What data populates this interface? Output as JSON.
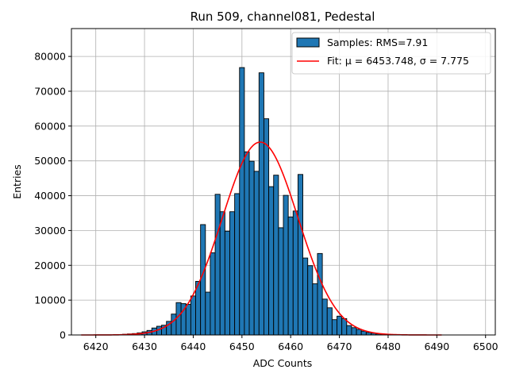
{
  "chart_data": {
    "type": "bar",
    "title": "Run 509, channel081, Pedestal",
    "xlabel": "ADC Counts",
    "ylabel": "Entries",
    "xlim": [
      6415,
      6502
    ],
    "ylim": [
      0,
      88000
    ],
    "xticks": [
      6420,
      6430,
      6440,
      6450,
      6460,
      6470,
      6480,
      6490,
      6500
    ],
    "yticks": [
      0,
      10000,
      20000,
      30000,
      40000,
      50000,
      60000,
      70000,
      80000
    ],
    "grid": true,
    "legend_position": "top-right",
    "colors": {
      "bars": "#1f77b4",
      "bar_edge": "#000000",
      "fit": "#ff0000",
      "grid": "#b0b0b0"
    },
    "histogram": {
      "series_name": "Samples: RMS=7.91",
      "bin_width": 1,
      "bins": [
        {
          "x": 6425,
          "y": 100
        },
        {
          "x": 6426,
          "y": 200
        },
        {
          "x": 6427,
          "y": 300
        },
        {
          "x": 6428,
          "y": 400
        },
        {
          "x": 6429,
          "y": 600
        },
        {
          "x": 6430,
          "y": 900
        },
        {
          "x": 6431,
          "y": 1300
        },
        {
          "x": 6432,
          "y": 2000
        },
        {
          "x": 6433,
          "y": 2500
        },
        {
          "x": 6434,
          "y": 2800
        },
        {
          "x": 6435,
          "y": 3900
        },
        {
          "x": 6436,
          "y": 6000
        },
        {
          "x": 6437,
          "y": 9300
        },
        {
          "x": 6438,
          "y": 9000
        },
        {
          "x": 6439,
          "y": 8800
        },
        {
          "x": 6440,
          "y": 11200
        },
        {
          "x": 6441,
          "y": 15400
        },
        {
          "x": 6442,
          "y": 31700
        },
        {
          "x": 6443,
          "y": 12300
        },
        {
          "x": 6444,
          "y": 23600
        },
        {
          "x": 6445,
          "y": 40400
        },
        {
          "x": 6446,
          "y": 35400
        },
        {
          "x": 6447,
          "y": 29800
        },
        {
          "x": 6448,
          "y": 35400
        },
        {
          "x": 6449,
          "y": 40600
        },
        {
          "x": 6450,
          "y": 76800
        },
        {
          "x": 6451,
          "y": 52600
        },
        {
          "x": 6452,
          "y": 49900
        },
        {
          "x": 6453,
          "y": 47000
        },
        {
          "x": 6454,
          "y": 75300
        },
        {
          "x": 6455,
          "y": 62100
        },
        {
          "x": 6456,
          "y": 42600
        },
        {
          "x": 6457,
          "y": 45900
        },
        {
          "x": 6458,
          "y": 30800
        },
        {
          "x": 6459,
          "y": 40100
        },
        {
          "x": 6460,
          "y": 33900
        },
        {
          "x": 6461,
          "y": 35600
        },
        {
          "x": 6462,
          "y": 46100
        },
        {
          "x": 6463,
          "y": 22100
        },
        {
          "x": 6464,
          "y": 19900
        },
        {
          "x": 6465,
          "y": 14700
        },
        {
          "x": 6466,
          "y": 23400
        },
        {
          "x": 6467,
          "y": 10300
        },
        {
          "x": 6468,
          "y": 7800
        },
        {
          "x": 6469,
          "y": 4400
        },
        {
          "x": 6470,
          "y": 5400
        },
        {
          "x": 6471,
          "y": 4700
        },
        {
          "x": 6472,
          "y": 2700
        },
        {
          "x": 6473,
          "y": 2100
        },
        {
          "x": 6474,
          "y": 1600
        },
        {
          "x": 6475,
          "y": 1100
        },
        {
          "x": 6476,
          "y": 700
        },
        {
          "x": 6477,
          "y": 500
        },
        {
          "x": 6478,
          "y": 300
        },
        {
          "x": 6479,
          "y": 200
        },
        {
          "x": 6480,
          "y": 100
        }
      ]
    },
    "fit": {
      "series_name": "Fit: μ = 6453.748, σ = 7.775",
      "mu": 6453.748,
      "sigma": 7.775,
      "amplitude": 55400,
      "x_range": [
        6417,
        6491
      ]
    }
  }
}
